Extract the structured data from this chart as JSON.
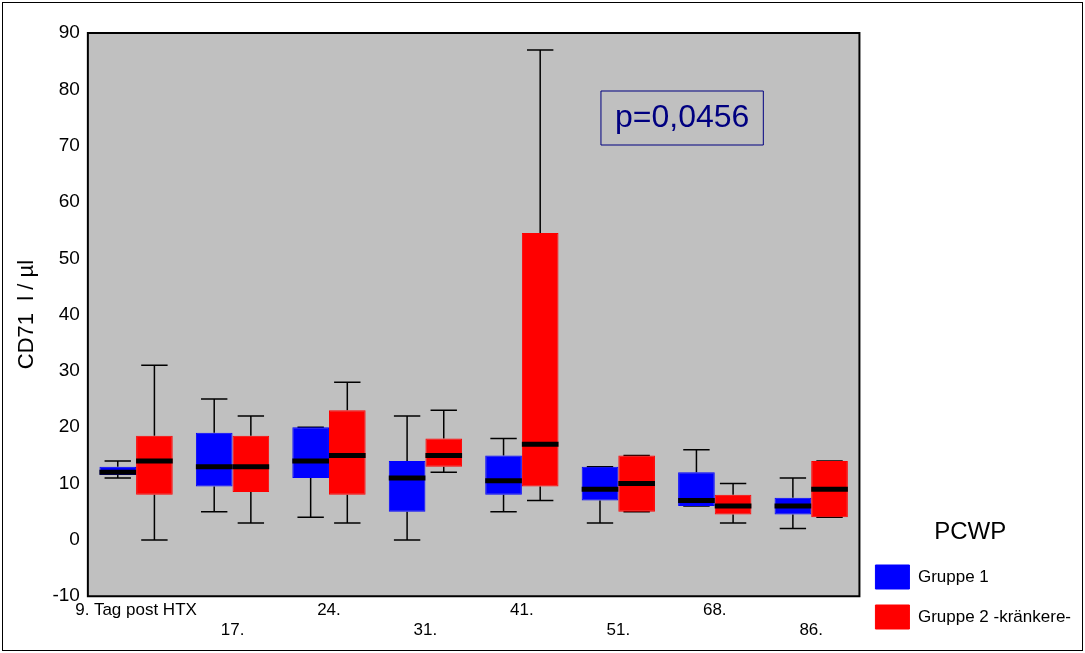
{
  "chart_data": {
    "type": "box",
    "ylabel": "CD71  l / µl",
    "legend_title": "PCWP",
    "legend": "right",
    "categories": [
      "9. Tag post HTX",
      "17.",
      "24.",
      "31.",
      "41.",
      "51.",
      "68.",
      "86."
    ],
    "ylim": [
      -10,
      90
    ],
    "yticks": [
      -10,
      0,
      10,
      20,
      30,
      40,
      50,
      60,
      70,
      80,
      90
    ],
    "annotations": [
      "p=0,0456"
    ],
    "series": [
      {
        "name": "Gruppe 1",
        "color": "#0000ff",
        "boxes": [
          {
            "low": 11,
            "q1": 11.5,
            "median": 12,
            "q3": 13,
            "high": 14
          },
          {
            "low": 5,
            "q1": 9.5,
            "median": 13,
            "q3": 19,
            "high": 25
          },
          {
            "low": 4,
            "q1": 11,
            "median": 14,
            "q3": 20,
            "high": 20
          },
          {
            "low": 0,
            "q1": 5,
            "median": 11,
            "q3": 14,
            "high": 22
          },
          {
            "low": 5,
            "q1": 8,
            "median": 10.5,
            "q3": 15,
            "high": 18
          },
          {
            "low": 3,
            "q1": 7,
            "median": 9,
            "q3": 13,
            "high": 13
          },
          {
            "low": 6,
            "q1": 6,
            "median": 7,
            "q3": 12,
            "high": 16
          },
          {
            "low": 2,
            "q1": 4.5,
            "median": 6,
            "q3": 7.5,
            "high": 11
          }
        ]
      },
      {
        "name": "Gruppe 2 -kränkere-",
        "color": "#ff0000",
        "boxes": [
          {
            "low": 0,
            "q1": 8,
            "median": 14,
            "q3": 18.5,
            "high": 31
          },
          {
            "low": 3,
            "q1": 8.5,
            "median": 13,
            "q3": 18.5,
            "high": 22
          },
          {
            "low": 3,
            "q1": 8,
            "median": 15,
            "q3": 23,
            "high": 28
          },
          {
            "low": 12,
            "q1": 13,
            "median": 15,
            "q3": 18,
            "high": 23
          },
          {
            "low": 7,
            "q1": 9.5,
            "median": 17,
            "q3": 54.5,
            "high": 87
          },
          {
            "low": 5,
            "q1": 5,
            "median": 10,
            "q3": 15,
            "high": 15
          },
          {
            "low": 3,
            "q1": 4.5,
            "median": 6,
            "q3": 8,
            "high": 10
          },
          {
            "low": 4,
            "q1": 4,
            "median": 9,
            "q3": 14,
            "high": 14
          }
        ]
      }
    ]
  }
}
